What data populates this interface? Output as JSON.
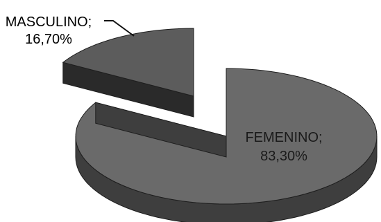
{
  "chart_data": {
    "type": "pie",
    "style": "3d-exploded",
    "slices": [
      {
        "category": "FEMENINO",
        "value": 83.3,
        "value_label": "83,30%",
        "separator": ";",
        "color": "#6a6a6a",
        "label_position": "inside"
      },
      {
        "category": "MASCULINO",
        "value": 16.7,
        "value_label": "16,70%",
        "separator": ";",
        "color": "#5a5a5a",
        "label_position": "outside-with-leader",
        "exploded": true
      }
    ],
    "colors": {
      "top_big": "#6a6a6a",
      "side_big": "#3e3e3e",
      "top_small": "#5c5c5c",
      "side_small": "#2a2a2a",
      "outline": "#1e1e1e"
    }
  }
}
